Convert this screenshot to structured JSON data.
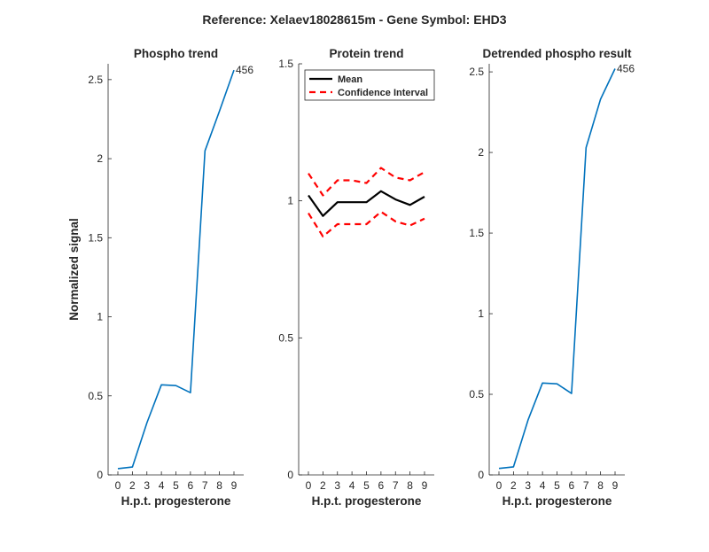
{
  "figure": {
    "title": "Reference:  Xelaev18028615m - Gene Symbol:  EHD3"
  },
  "chart_data": [
    {
      "type": "line",
      "title": "Phospho trend",
      "xlabel": "H.p.t. progesterone",
      "ylabel": "Normalized signal",
      "x_ticks": [
        "0",
        "2",
        "3",
        "4",
        "5",
        "6",
        "7",
        "8",
        "9"
      ],
      "y_ticks": [
        "0",
        "0.5",
        "1",
        "1.5",
        "2",
        "2.5"
      ],
      "ylim": [
        0,
        2.6
      ],
      "grid": false,
      "series": [
        {
          "color": "#0072BD",
          "values": [
            0.04,
            0.05,
            0.33,
            0.57,
            0.565,
            0.52,
            2.05,
            2.3,
            2.56
          ]
        }
      ],
      "annotation": {
        "text": "456",
        "index": 8
      }
    },
    {
      "type": "line",
      "title": "Protein trend",
      "xlabel": "H.p.t. progesterone",
      "ylabel": "",
      "x_ticks": [
        "0",
        "2",
        "3",
        "4",
        "5",
        "6",
        "7",
        "8",
        "9"
      ],
      "y_ticks": [
        "0",
        "0.5",
        "1",
        "1.5"
      ],
      "ylim": [
        0,
        1.5
      ],
      "grid": false,
      "legend_position": "top-left",
      "series": [
        {
          "name": "Mean",
          "color": "#000000",
          "style": "solid",
          "values": [
            1.02,
            0.945,
            0.995,
            0.995,
            0.995,
            1.035,
            1.005,
            0.985,
            1.015
          ]
        },
        {
          "name": "Confidence Interval",
          "color": "#ff0000",
          "style": "dashed",
          "values": [
            1.1,
            1.02,
            1.075,
            1.075,
            1.065,
            1.12,
            1.085,
            1.075,
            1.105
          ]
        },
        {
          "color": "#ff0000",
          "style": "dashed",
          "values": [
            0.955,
            0.87,
            0.915,
            0.915,
            0.915,
            0.96,
            0.925,
            0.91,
            0.935
          ]
        }
      ]
    },
    {
      "type": "line",
      "title": "Detrended phospho result",
      "xlabel": "H.p.t. progesterone",
      "ylabel": "",
      "x_ticks": [
        "0",
        "2",
        "3",
        "4",
        "5",
        "6",
        "7",
        "8",
        "9"
      ],
      "y_ticks": [
        "0",
        "0.5",
        "1",
        "1.5",
        "2",
        "2.5"
      ],
      "ylim": [
        0,
        2.55
      ],
      "grid": false,
      "series": [
        {
          "color": "#0072BD",
          "values": [
            0.04,
            0.05,
            0.34,
            0.57,
            0.565,
            0.505,
            2.03,
            2.33,
            2.52
          ]
        }
      ],
      "annotation": {
        "text": "456",
        "index": 8
      }
    }
  ]
}
